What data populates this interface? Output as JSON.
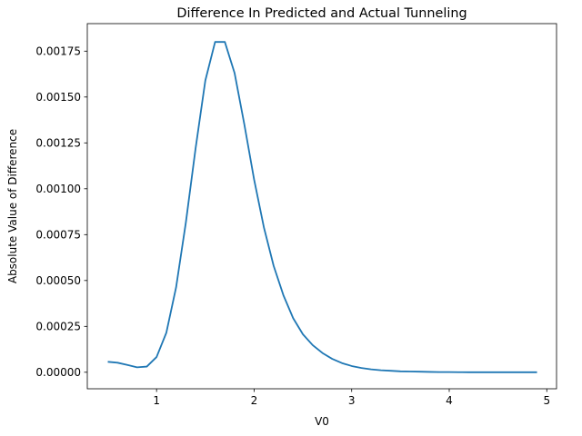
{
  "chart_data": {
    "type": "line",
    "title": "Difference In Predicted and Actual Tunneling",
    "xlabel": "V0",
    "ylabel": "Absolute Value of Difference",
    "xlim": [
      0.29,
      5.1
    ],
    "ylim": [
      -9e-05,
      0.0019
    ],
    "grid": false,
    "legend": "none",
    "xticks": [
      {
        "value": 1,
        "label": "1"
      },
      {
        "value": 2,
        "label": "2"
      },
      {
        "value": 3,
        "label": "3"
      },
      {
        "value": 4,
        "label": "4"
      },
      {
        "value": 5,
        "label": "5"
      }
    ],
    "yticks": [
      {
        "value": 0.0,
        "label": "0.00000"
      },
      {
        "value": 0.00025,
        "label": "0.00025"
      },
      {
        "value": 0.0005,
        "label": "0.00050"
      },
      {
        "value": 0.00075,
        "label": "0.00075"
      },
      {
        "value": 0.001,
        "label": "0.00100"
      },
      {
        "value": 0.00125,
        "label": "0.00125"
      },
      {
        "value": 0.0015,
        "label": "0.00150"
      },
      {
        "value": 0.00175,
        "label": "0.00175"
      }
    ],
    "series": [
      {
        "color": "#1f77b4",
        "x": [
          0.5,
          0.6,
          0.7,
          0.8,
          0.9,
          1.0,
          1.1,
          1.2,
          1.3,
          1.4,
          1.5,
          1.6,
          1.7,
          1.8,
          1.9,
          2.0,
          2.1,
          2.2,
          2.3,
          2.4,
          2.5,
          2.6,
          2.7,
          2.8,
          2.9,
          3.0,
          3.1,
          3.2,
          3.3,
          3.4,
          3.5,
          3.6,
          3.7,
          3.8,
          3.9,
          4.0,
          4.1,
          4.2,
          4.3,
          4.4,
          4.5,
          4.6,
          4.7,
          4.8,
          4.9
        ],
        "y": [
          5.7e-05,
          5.2e-05,
          4e-05,
          2.7e-05,
          3.1e-05,
          8.3e-05,
          0.000215,
          0.000462,
          0.000815,
          0.00122,
          0.00159,
          0.0018,
          0.0018,
          0.00163,
          0.00135,
          0.00105,
          0.00079,
          0.00058,
          0.00042,
          0.000295,
          0.000207,
          0.000148,
          0.000105,
          7.3e-05,
          5e-05,
          3.4e-05,
          2.3e-05,
          1.6e-05,
          1.1e-05,
          8e-06,
          5e-06,
          4e-06,
          3e-06,
          2e-06,
          1e-06,
          1e-06,
          5e-07,
          0.0,
          0.0,
          0.0,
          0.0,
          0.0,
          0.0,
          0.0,
          0.0
        ]
      }
    ]
  }
}
